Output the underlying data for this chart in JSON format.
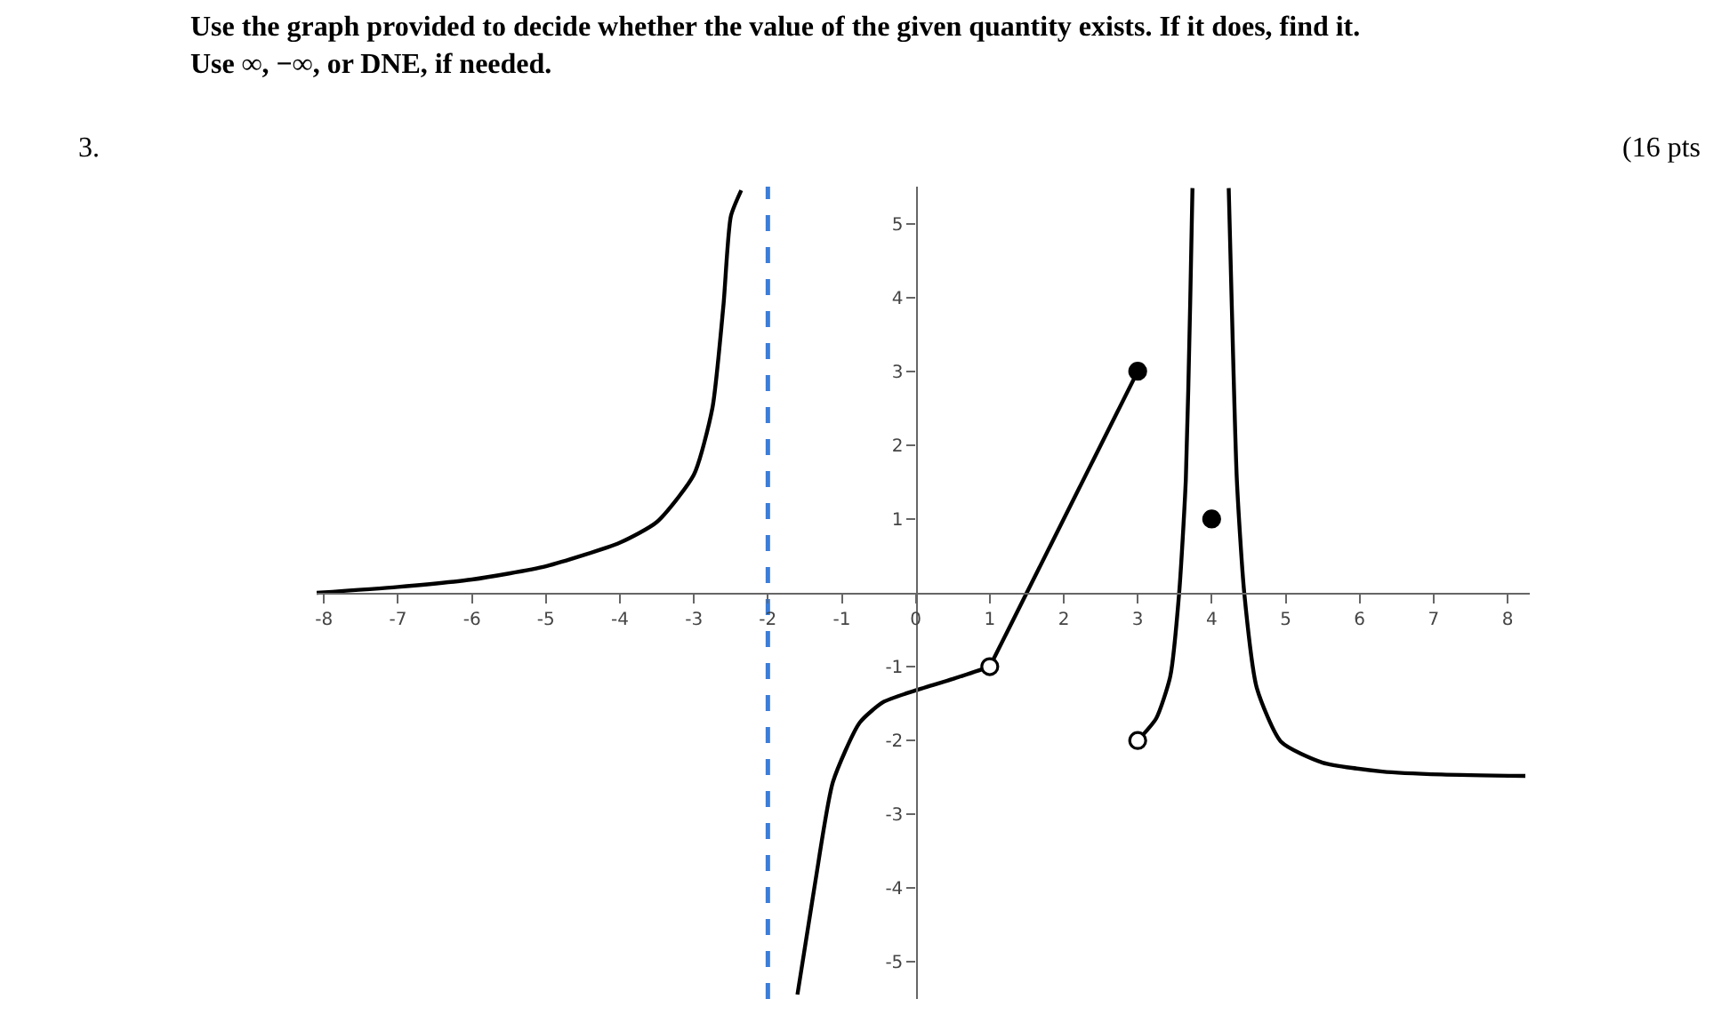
{
  "chart_data": {
    "type": "line",
    "title": "Use the graph provided to decide whether the value of the given quantity exists. If it does, find it.\nUse ∞, −∞, or DNE, if needed.",
    "annotations": [
      "3.",
      "(16 pts"
    ],
    "xlim": [
      -8.1,
      8.3
    ],
    "ylim": [
      -5.5,
      5.5
    ],
    "xticks": [
      -8,
      -7,
      -6,
      -5,
      -4,
      -3,
      -2,
      -1,
      0,
      1,
      2,
      3,
      4,
      5,
      6,
      7,
      8
    ],
    "yticks": [
      -5,
      -4,
      -3,
      -2,
      -1,
      1,
      2,
      3,
      4,
      5
    ],
    "grid": false,
    "line_style": "solid",
    "series": [
      {
        "color": "#000000",
        "marker": "none",
        "x": [
          -8.1,
          -7,
          -6,
          -5,
          -4,
          -3.5,
          -3,
          -2.75,
          -2.6,
          -2.5,
          -2.36
        ],
        "values": [
          0.0,
          0.08,
          0.18,
          0.36,
          0.68,
          0.96,
          1.6,
          2.5,
          3.9,
          5.1,
          5.45
        ]
      },
      {
        "color": "#000000",
        "marker": "none",
        "x": [
          -1.6,
          -1.36,
          -1.12,
          -0.76,
          -0.44,
          0,
          0.52,
          1
        ],
        "values": [
          -5.44,
          -3.92,
          -2.56,
          -1.76,
          -1.48,
          -1.32,
          -1.16,
          -1
        ]
      },
      {
        "color": "#000000",
        "marker": "none",
        "x": [
          1,
          3
        ],
        "values": [
          -1,
          3
        ]
      },
      {
        "color": "#000000",
        "marker": "none",
        "x": [
          3,
          3.25,
          3.44,
          3.56,
          3.65,
          3.71,
          3.74
        ],
        "values": [
          -2,
          -1.7,
          -1.13,
          0,
          1.53,
          3.95,
          5.48
        ]
      },
      {
        "color": "#000000",
        "marker": "none",
        "x": [
          4.23,
          4.27,
          4.34,
          4.44,
          4.61,
          4.94,
          5.5,
          6.31,
          7.11,
          8.24
        ],
        "values": [
          5.48,
          3.95,
          1.53,
          0,
          -1.29,
          -2.02,
          -2.3,
          -2.42,
          -2.46,
          -2.48
        ]
      },
      {
        "type": "scatter",
        "color": "#000000",
        "marker": "circle",
        "x": [
          3,
          4
        ],
        "values": [
          3,
          1
        ]
      },
      {
        "type": "scatter",
        "color": "#ffffff",
        "marker": "circle",
        "x": [
          1,
          3
        ],
        "values": [
          -1,
          -2
        ]
      }
    ],
    "ref_lines": [
      {
        "axis": "x",
        "value": -2,
        "color": "#3b7dd8",
        "line_style": "dashed"
      }
    ]
  }
}
